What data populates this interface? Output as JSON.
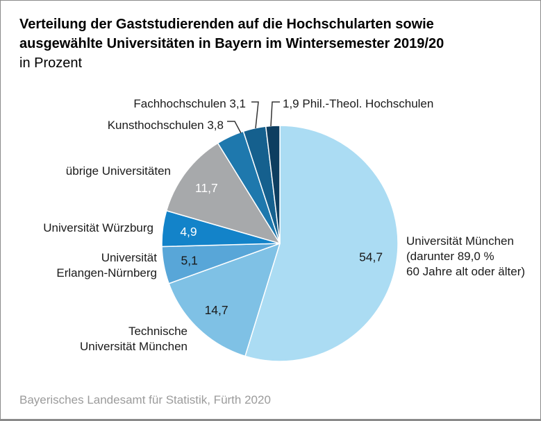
{
  "header": {
    "title_line1": "Verteilung der Gaststudierenden auf die Hochschularten sowie",
    "title_line2": "ausgewählte Universitäten in Bayern im Wintersemester 2019/20",
    "subtitle": "in Prozent"
  },
  "chart_data": {
    "type": "pie",
    "title": "Verteilung der Gaststudierenden auf die Hochschularten sowie ausgewählte Universitäten in Bayern im Wintersemester 2019/20",
    "unit": "in Prozent",
    "start_angle_deg": 0,
    "direction": "clockwise",
    "slices": [
      {
        "label": "Universität München",
        "value": 54.7,
        "display_value": "54,7",
        "color": "#abdcf3",
        "value_inside": true,
        "value_color": "#1a1a1a",
        "note": "darunter 89,0 % 60 Jahre alt oder älter"
      },
      {
        "label": "Technische Universität München",
        "value": 14.7,
        "display_value": "14,7",
        "color": "#7fc1e5",
        "value_inside": true,
        "value_color": "#1a1a1a"
      },
      {
        "label": "Universität Erlangen-Nürnberg",
        "value": 5.1,
        "display_value": "5,1",
        "color": "#58a6d8",
        "value_inside": true,
        "value_color": "#1a1a1a"
      },
      {
        "label": "Universität Würzburg",
        "value": 4.9,
        "display_value": "4,9",
        "color": "#1383c9",
        "value_inside": true,
        "value_color": "#ffffff"
      },
      {
        "label": "übrige Universitäten",
        "value": 11.7,
        "display_value": "11,7",
        "color": "#a7a9ab",
        "value_inside": true,
        "value_color": "#ffffff"
      },
      {
        "label": "Kunsthochschulen",
        "value": 3.8,
        "display_value": "3,8",
        "color": "#1e78ad",
        "value_inside": false
      },
      {
        "label": "Fachhochschulen",
        "value": 3.1,
        "display_value": "3,1",
        "color": "#15608e",
        "value_inside": false
      },
      {
        "label": "Phil.-Theol. Hochschulen",
        "value": 1.9,
        "display_value": "1,9",
        "color": "#0e3e60",
        "value_inside": false
      }
    ]
  },
  "callouts": {
    "fachhochschulen": "Fachhochschulen 3,1",
    "phil_theol": "1,9 Phil.-Theol. Hochschulen",
    "kunsthochschulen": "Kunsthochschulen 3,8",
    "uebrige_universitaeten": "übrige Universitäten",
    "wuerzburg": "Universität Würzburg",
    "erlangen_line1": "Universität",
    "erlangen_line2": "Erlangen-Nürnberg",
    "tum_line1": "Technische",
    "tum_line2": "Universität München",
    "muenchen_line1": "Universität München",
    "muenchen_line2": "(darunter 89,0 %",
    "muenchen_line3": "60 Jahre alt oder älter)"
  },
  "footer": {
    "source": "Bayerisches Landesamt für Statistik, Fürth 2020"
  }
}
